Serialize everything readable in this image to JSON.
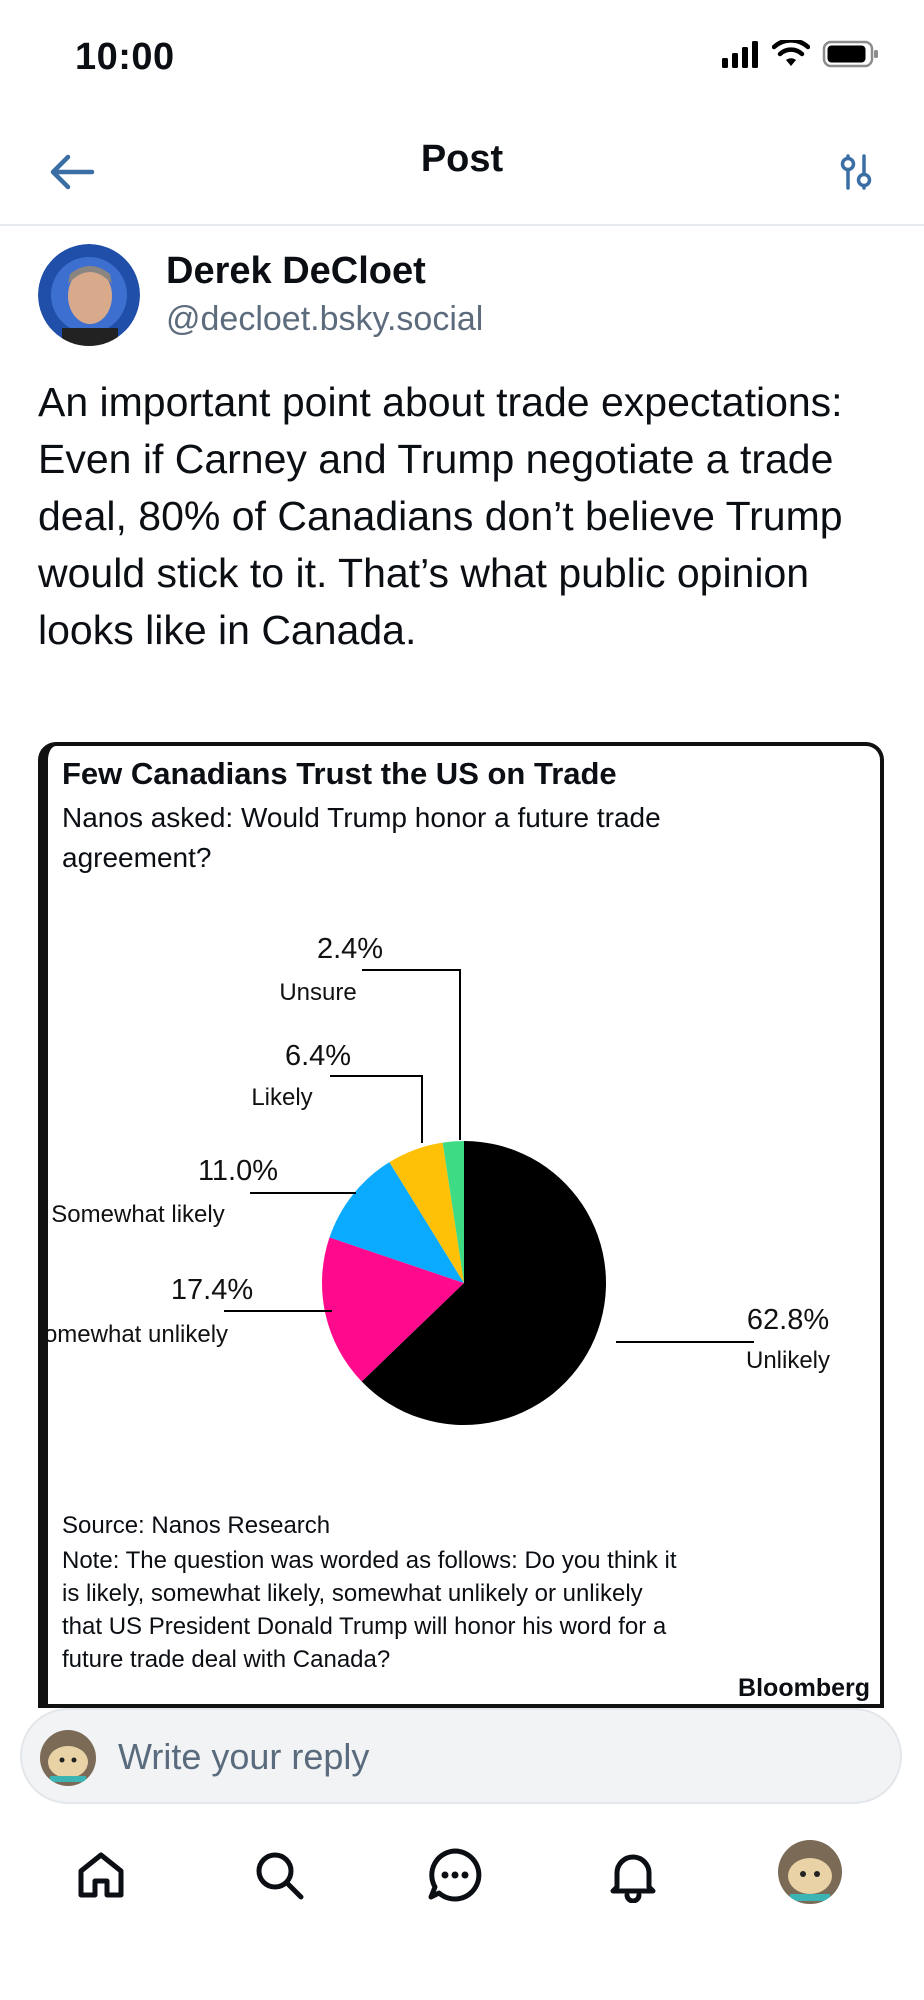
{
  "status_bar": {
    "time": "10:00"
  },
  "header": {
    "title": "Post"
  },
  "post": {
    "author_name": "Derek DeCloet",
    "author_handle": "@decloet.bsky.social",
    "text": "An important point about trade expectations: Even if Carney and Trump negotiate a trade deal, 80% of Canadians don’t believe Trump would stick to it. That’s what public opinion looks like in Canada."
  },
  "chart": {
    "title": "Few Canadians Trust the US on Trade",
    "subtitle": "Nanos asked: Would Trump honor a future trade agreement?",
    "source": "Source: Nanos Research",
    "note": "Note: The question was worded as follows: Do you think it is likely, somewhat likely, somewhat unlikely or unlikely that US President Donald Trump will honor his word for a future trade deal with Canada?",
    "brand": "Bloomberg"
  },
  "chart_data": {
    "type": "pie",
    "title": "Few Canadians Trust the US on Trade",
    "subtitle": "Nanos asked: Would Trump honor a future trade agreement?",
    "slices": [
      {
        "label": "Unlikely",
        "value": 62.8,
        "display": "62.8%",
        "color": "#000000"
      },
      {
        "label": "Somewhat unlikely",
        "value": 17.4,
        "display": "17.4%",
        "color": "#ff0a8c"
      },
      {
        "label": "Somewhat likely",
        "value": 11.0,
        "display": "11.0%",
        "color": "#0aaaff"
      },
      {
        "label": "Likely",
        "value": 6.4,
        "display": "6.4%",
        "color": "#ffc107"
      },
      {
        "label": "Unsure",
        "value": 2.4,
        "display": "2.4%",
        "color": "#3ddc84"
      }
    ],
    "source": "Source: Nanos Research",
    "brand": "Bloomberg"
  },
  "reply": {
    "placeholder": "Write your reply"
  },
  "tabs": [
    "home",
    "search",
    "chat",
    "notifications",
    "profile"
  ],
  "colors": {
    "accent": "#3b6ea5",
    "text": "#0b0f14",
    "muted": "#5d6c7d"
  }
}
